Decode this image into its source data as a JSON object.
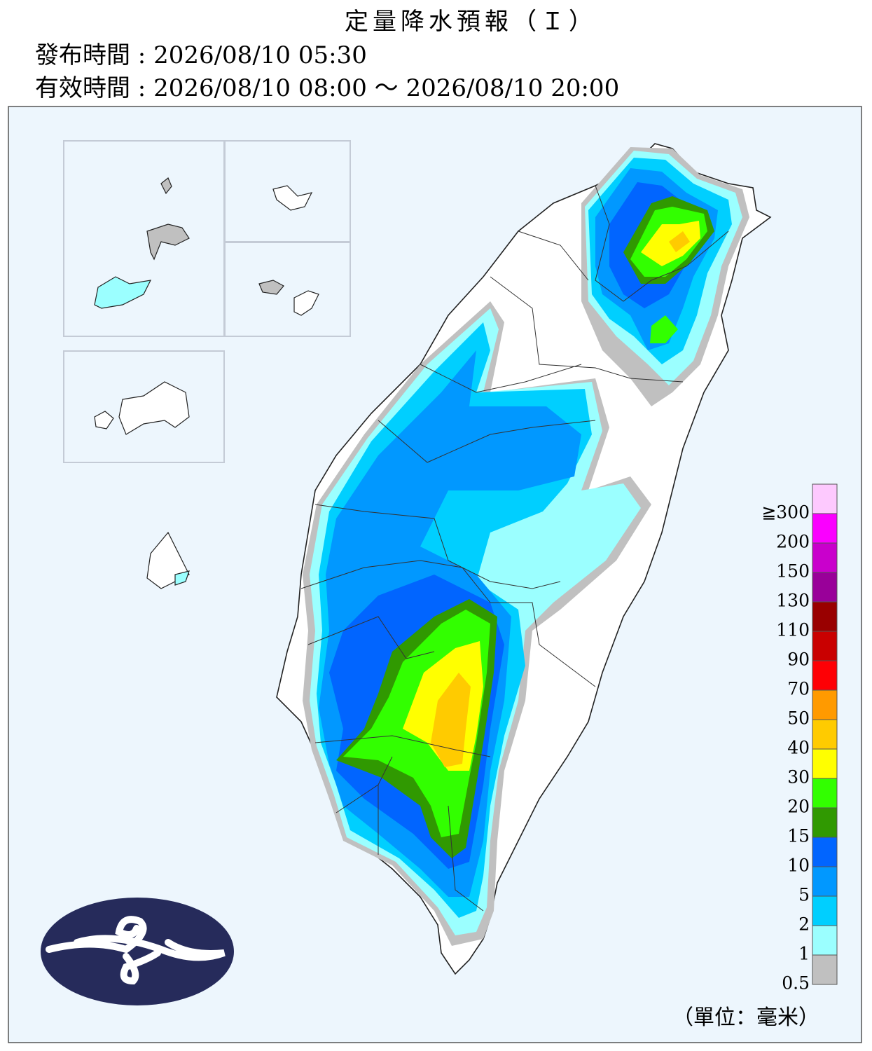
{
  "header": {
    "title": "定量降水預報（Ｉ）",
    "issued": "發布時間 : 2026/08/10 05:30",
    "valid": "有效時間 : 2026/08/10 08:00 ～ 2026/08/10 20:00"
  },
  "legend": {
    "labels": [
      "0.5",
      "1",
      "2",
      "5",
      "10",
      "15",
      "20",
      "30",
      "40",
      "50",
      "70",
      "90",
      "110",
      "130",
      "150",
      "200",
      "≧300"
    ],
    "colors": [
      "#c0c0c0",
      "#9bffff",
      "#00cfff",
      "#0198ff",
      "#0165ff",
      "#309901",
      "#32ff00",
      "#ffff00",
      "#ffcb00",
      "#ff9a00",
      "#fe0005",
      "#c90000",
      "#990000",
      "#990099",
      "#c900cc",
      "#fa00ff",
      "#fdc9fe"
    ],
    "unit": "（單位：毫米）"
  }
}
